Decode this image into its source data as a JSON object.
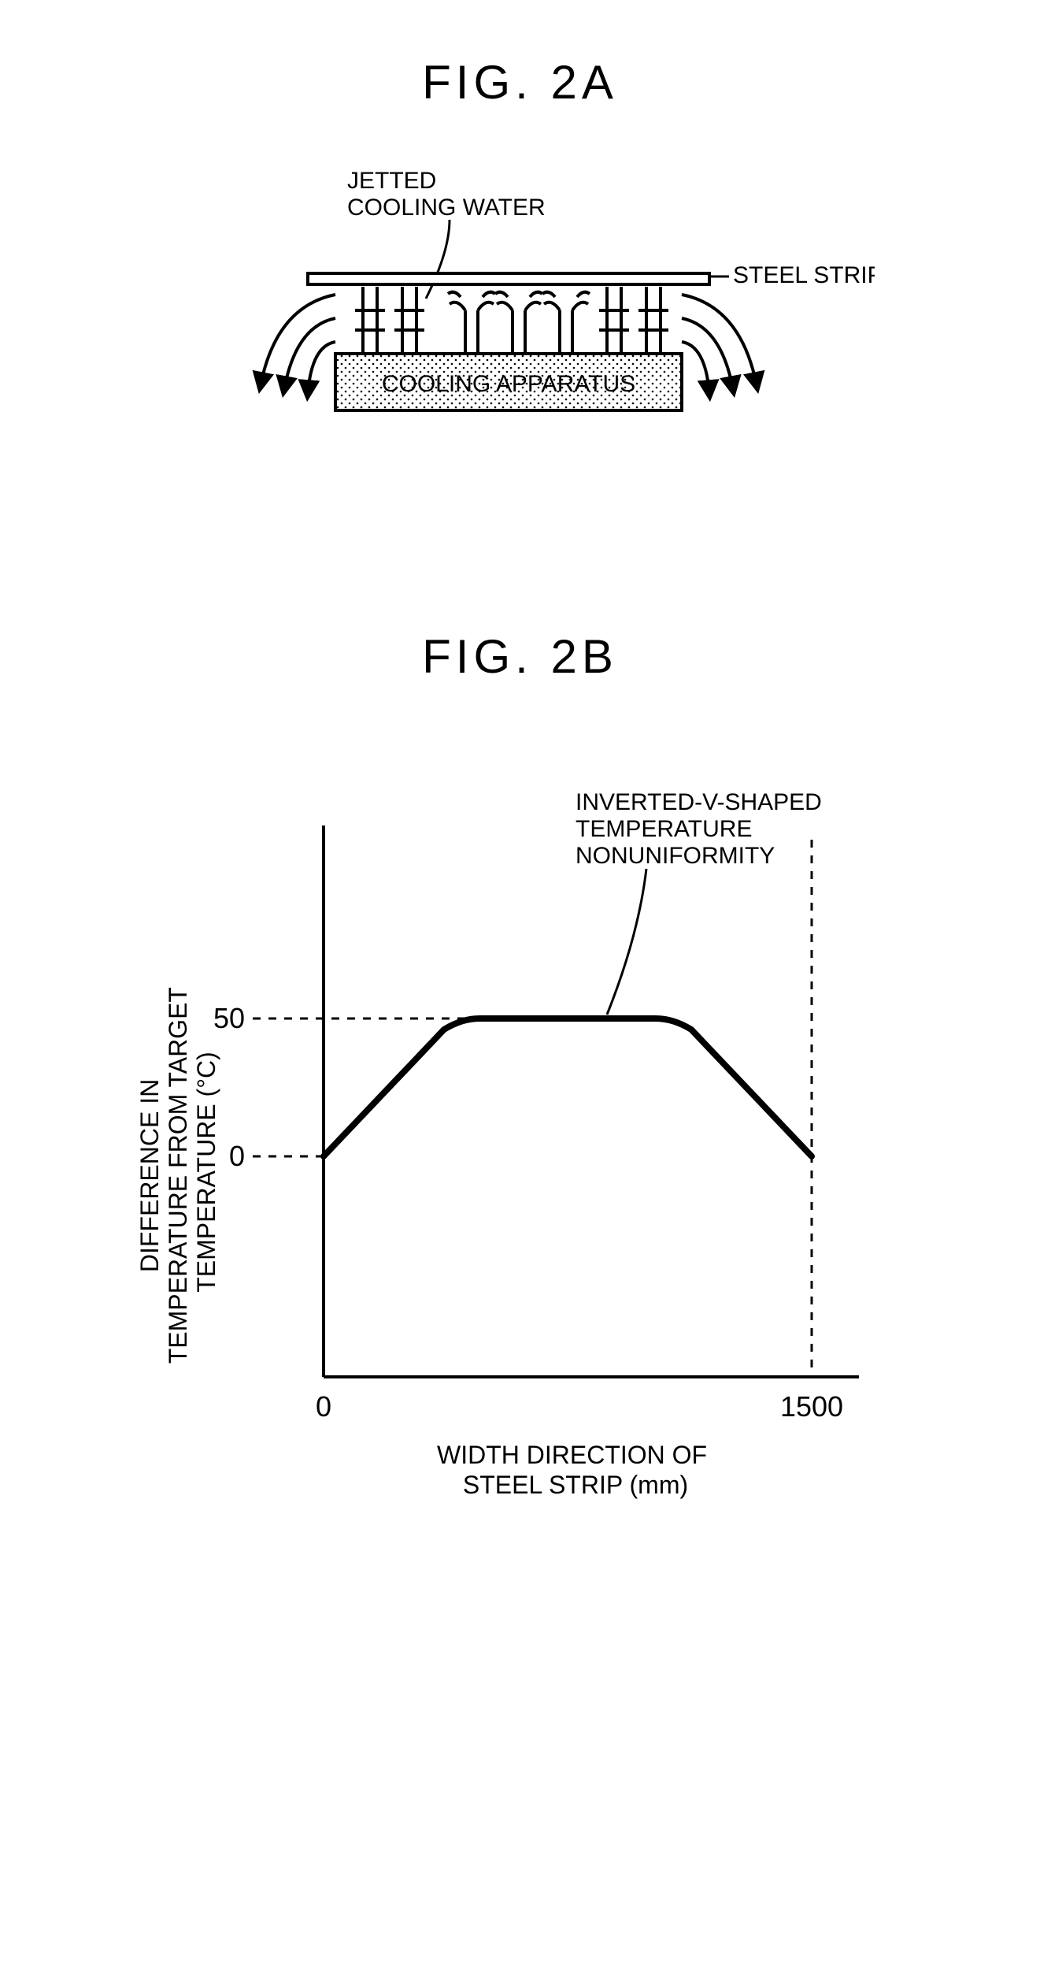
{
  "fig2a": {
    "title": "FIG.  2A",
    "label_jetted": "JETTED\nCOOLING WATER",
    "label_steel": "STEEL STRIP",
    "label_apparatus": "COOLING APPARATUS",
    "font_family": "Arial, Helvetica, sans-serif",
    "font_size_title": 60,
    "font_size_labels": 30,
    "stroke": "#000000",
    "stroke_width": 4,
    "dot_bg": "#f2f2f2"
  },
  "fig2b": {
    "title": "FIG.  2B",
    "ylabel": "DIFFERENCE IN\nTEMPERATURE FROM TARGET\nTEMPERATURE (°C)",
    "xlabel": "WIDTH DIRECTION OF\nSTEEL STRIP (mm)",
    "annotation": "INVERTED-V-SHAPED\nTEMPERATURE\nNONUNIFORMITY",
    "xlim": [
      0,
      1500
    ],
    "ylim": [
      -80,
      120
    ],
    "ytick_0": "0",
    "ytick_50": "50",
    "xtick_0": "0",
    "xtick_1500": "1500",
    "curve": [
      {
        "x": 0,
        "y": 0
      },
      {
        "x": 370,
        "y": 46
      },
      {
        "x": 480,
        "y": 50
      },
      {
        "x": 1020,
        "y": 50
      },
      {
        "x": 1130,
        "y": 46
      },
      {
        "x": 1500,
        "y": 0
      }
    ],
    "dash_top_y": 115,
    "axis_stroke": "#000000",
    "axis_width": 4,
    "curve_width": 8,
    "dash_pattern": "10 10",
    "font_size_ticks": 36,
    "font_size_axis_label": 32,
    "font_size_annotation": 30
  }
}
